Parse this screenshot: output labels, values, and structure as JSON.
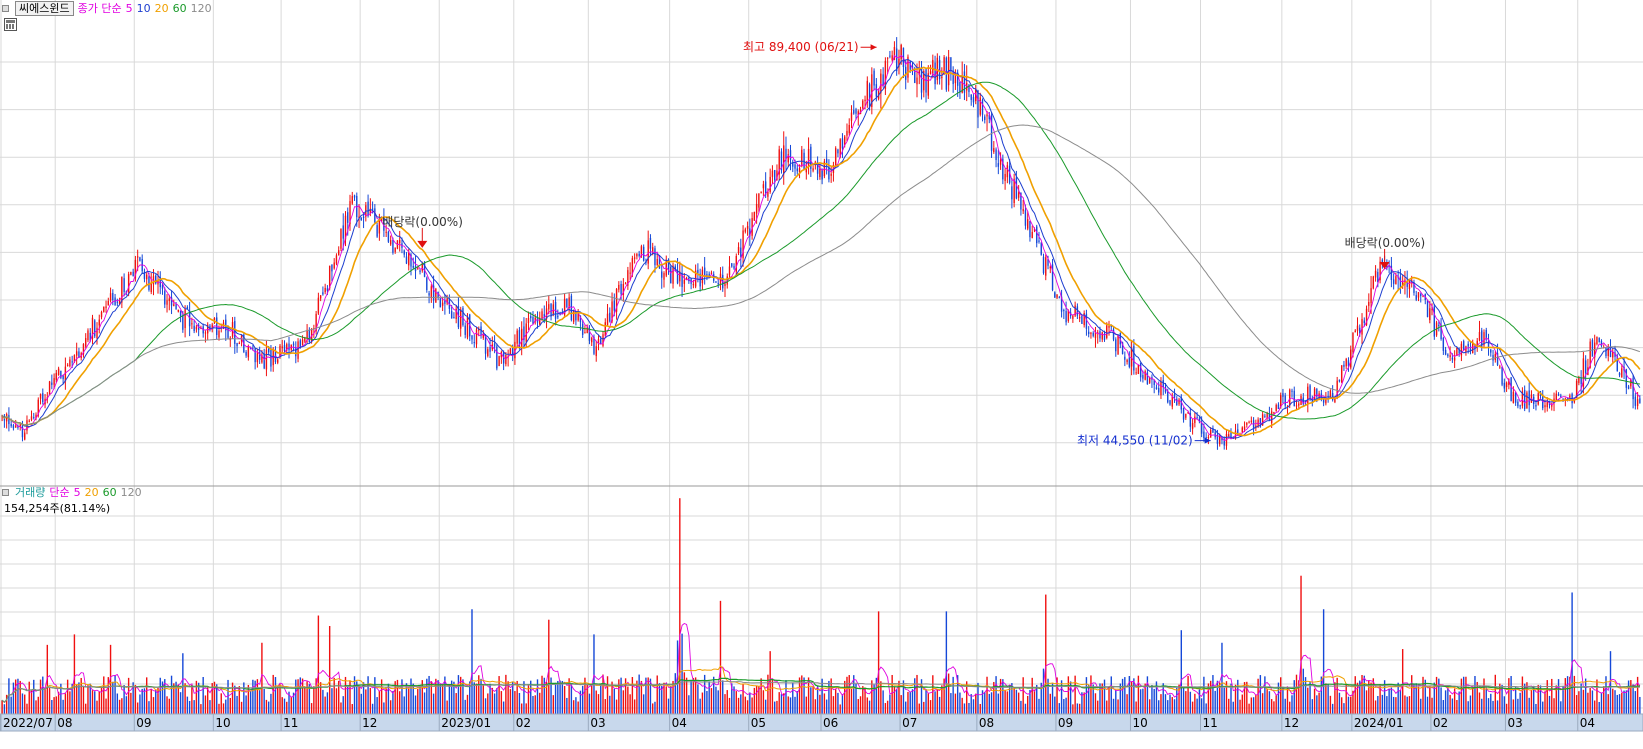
{
  "price_header": {
    "stock_name": "씨에스윈드",
    "ma_label": "종가 단순",
    "ma_periods": [
      {
        "label": "5",
        "color": "#e000e0"
      },
      {
        "label": "10",
        "color": "#1e3fd0"
      },
      {
        "label": "20",
        "color": "#f0a000"
      },
      {
        "label": "60",
        "color": "#1a9a2a"
      },
      {
        "label": "120",
        "color": "#8c8c8c"
      }
    ]
  },
  "volume_header": {
    "title": "거래량",
    "ma_label": "단순",
    "ma_periods": [
      {
        "label": "5",
        "color": "#e000e0"
      },
      {
        "label": "20",
        "color": "#f0a000"
      },
      {
        "label": "60",
        "color": "#1a9a2a"
      },
      {
        "label": "120",
        "color": "#8c8c8c"
      }
    ],
    "current_volume": "154,254주(81.14%)"
  },
  "colors": {
    "up": "#f01010",
    "down": "#1548d8",
    "grid": "#d9d9d9",
    "axis_band": "#c8d8ec"
  },
  "annotations": {
    "high": "최고 89,400 (06/21)",
    "low": "최저 44,550 (11/02)",
    "dividend_1": "배당락(0.00%)",
    "dividend_2": "배당락(0.00%)"
  },
  "chart_data": [
    {
      "type": "candlestick",
      "y_range": [
        42000,
        92500
      ],
      "keyframes": [
        {
          "t": 0,
          "close": 47500
        },
        {
          "t": 8,
          "close": 45500
        },
        {
          "t": 20,
          "close": 50000
        },
        {
          "t": 50,
          "close": 61000
        },
        {
          "t": 60,
          "close": 64500
        },
        {
          "t": 80,
          "close": 58500
        },
        {
          "t": 100,
          "close": 57500
        },
        {
          "t": 115,
          "close": 53500
        },
        {
          "t": 135,
          "close": 56000
        },
        {
          "t": 155,
          "close": 71500
        },
        {
          "t": 175,
          "close": 67000
        },
        {
          "t": 195,
          "close": 60500
        },
        {
          "t": 210,
          "close": 56500
        },
        {
          "t": 220,
          "close": 53500
        },
        {
          "t": 235,
          "close": 58000
        },
        {
          "t": 250,
          "close": 60000
        },
        {
          "t": 262,
          "close": 55000
        },
        {
          "t": 282,
          "close": 67000
        },
        {
          "t": 300,
          "close": 62500
        },
        {
          "t": 320,
          "close": 63000
        },
        {
          "t": 345,
          "close": 77000
        },
        {
          "t": 365,
          "close": 75500
        },
        {
          "t": 388,
          "close": 86000
        },
        {
          "t": 395,
          "close": 88500
        },
        {
          "t": 405,
          "close": 86000
        },
        {
          "t": 420,
          "close": 86500
        },
        {
          "t": 432,
          "close": 82500
        },
        {
          "t": 470,
          "close": 59500
        },
        {
          "t": 490,
          "close": 56500
        },
        {
          "t": 535,
          "close": 44800
        },
        {
          "t": 548,
          "close": 45000
        },
        {
          "t": 570,
          "close": 49500
        },
        {
          "t": 590,
          "close": 50000
        },
        {
          "t": 610,
          "close": 64000
        },
        {
          "t": 625,
          "close": 62500
        },
        {
          "t": 640,
          "close": 54500
        },
        {
          "t": 655,
          "close": 56500
        },
        {
          "t": 670,
          "close": 49000
        },
        {
          "t": 695,
          "close": 49500
        },
        {
          "t": 705,
          "close": 56000
        },
        {
          "t": 715,
          "close": 53500
        },
        {
          "t": 725,
          "close": 48500
        }
      ],
      "annotations": [
        {
          "text_key": "high",
          "t": 388,
          "price": 89400,
          "dir": "left"
        },
        {
          "text_key": "low",
          "t": 535,
          "price": 44550,
          "dir": "right"
        },
        {
          "text_key": "dividend_1",
          "t": 186,
          "price": 68800,
          "dir": "down"
        },
        {
          "text_key": "dividend_2",
          "t": 612,
          "price": 66400,
          "dir": "down"
        }
      ]
    },
    {
      "type": "bar",
      "y_range": [
        0,
        1050000
      ],
      "base_volume": 130000,
      "spikes": [
        {
          "t": 20,
          "v": 330000
        },
        {
          "t": 32,
          "v": 380000
        },
        {
          "t": 48,
          "v": 330000
        },
        {
          "t": 80,
          "v": 290000
        },
        {
          "t": 115,
          "v": 340000
        },
        {
          "t": 140,
          "v": 470000
        },
        {
          "t": 145,
          "v": 420000
        },
        {
          "t": 208,
          "v": 500000
        },
        {
          "t": 242,
          "v": 450000
        },
        {
          "t": 262,
          "v": 380000
        },
        {
          "t": 300,
          "v": 1030000
        },
        {
          "t": 318,
          "v": 540000
        },
        {
          "t": 340,
          "v": 300000
        },
        {
          "t": 388,
          "v": 490000
        },
        {
          "t": 418,
          "v": 490000
        },
        {
          "t": 462,
          "v": 570000
        },
        {
          "t": 522,
          "v": 400000
        },
        {
          "t": 540,
          "v": 340000
        },
        {
          "t": 575,
          "v": 660000
        },
        {
          "t": 585,
          "v": 500000
        },
        {
          "t": 620,
          "v": 310000
        },
        {
          "t": 695,
          "v": 580000
        },
        {
          "t": 712,
          "v": 300000
        }
      ]
    }
  ],
  "x_axis": {
    "labels": [
      {
        "t": 0,
        "label": "2022/07"
      },
      {
        "t": 24,
        "label": "08"
      },
      {
        "t": 59,
        "label": "09"
      },
      {
        "t": 94,
        "label": "10"
      },
      {
        "t": 124,
        "label": "11"
      },
      {
        "t": 159,
        "label": "12"
      },
      {
        "t": 194,
        "label": "2023/01"
      },
      {
        "t": 227,
        "label": "02"
      },
      {
        "t": 260,
        "label": "03"
      },
      {
        "t": 296,
        "label": "04"
      },
      {
        "t": 331,
        "label": "05"
      },
      {
        "t": 363,
        "label": "06"
      },
      {
        "t": 398,
        "label": "07"
      },
      {
        "t": 432,
        "label": "08"
      },
      {
        "t": 467,
        "label": "09"
      },
      {
        "t": 500,
        "label": "10"
      },
      {
        "t": 531,
        "label": "11"
      },
      {
        "t": 567,
        "label": "12"
      },
      {
        "t": 598,
        "label": "2024/01"
      },
      {
        "t": 633,
        "label": "02"
      },
      {
        "t": 666,
        "label": "03"
      },
      {
        "t": 698,
        "label": "04"
      }
    ]
  }
}
